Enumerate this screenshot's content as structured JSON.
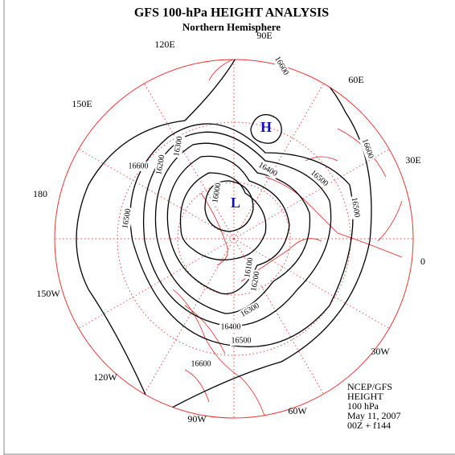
{
  "title": "GFS 100-hPa HEIGHT ANALYSIS",
  "subtitle": "Northern Hemisphere",
  "longitude_labels": [
    "90E",
    "60E",
    "30E",
    "0",
    "30W",
    "60W",
    "90W",
    "120W",
    "150W",
    "180",
    "150E",
    "120E"
  ],
  "contour_labels": [
    "16600",
    "16600",
    "16600",
    "16600",
    "16500",
    "16500",
    "16500",
    "16500",
    "16400",
    "16400",
    "16300",
    "16300",
    "16200",
    "16200",
    "16100",
    "16000"
  ],
  "centers": [
    "H",
    "L"
  ],
  "info": [
    "NCEP/GFS",
    "HEIGHT",
    "100 hPa",
    "May 11, 2007",
    "00Z + f144"
  ]
}
